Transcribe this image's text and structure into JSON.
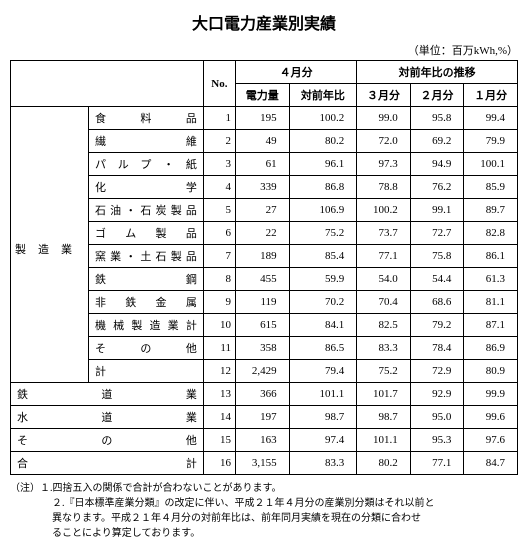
{
  "title": "大口電力産業別実績",
  "unit": "（単位：百万kWh,%）",
  "headers": {
    "no": "No.",
    "month_group": "４月分",
    "power": "電力量",
    "yoy": "対前年比",
    "trend_group": "対前年比の推移",
    "m3": "３月分",
    "m2": "２月分",
    "m1": "１月分"
  },
  "vertical_label": "製造業",
  "rows": [
    {
      "cat": "食　料　品",
      "no": "1",
      "power": "195",
      "yoy": "100.2",
      "m3": "99.0",
      "m2": "95.8",
      "m1": "99.4",
      "indent": true
    },
    {
      "cat": "繊　　　維",
      "no": "2",
      "power": "49",
      "yoy": "80.2",
      "m3": "72.0",
      "m2": "69.2",
      "m1": "79.9",
      "indent": true
    },
    {
      "cat": "パルプ・紙",
      "no": "3",
      "power": "61",
      "yoy": "96.1",
      "m3": "97.3",
      "m2": "94.9",
      "m1": "100.1",
      "indent": true
    },
    {
      "cat": "化　　　学",
      "no": "4",
      "power": "339",
      "yoy": "86.8",
      "m3": "78.8",
      "m2": "76.2",
      "m1": "85.9",
      "indent": true
    },
    {
      "cat": "石油・石炭製品",
      "no": "5",
      "power": "27",
      "yoy": "106.9",
      "m3": "100.2",
      "m2": "99.1",
      "m1": "89.7",
      "indent": true
    },
    {
      "cat": "ゴム製品",
      "no": "6",
      "power": "22",
      "yoy": "75.2",
      "m3": "73.7",
      "m2": "72.7",
      "m1": "82.8",
      "indent": true
    },
    {
      "cat": "窯業・土石製品",
      "no": "7",
      "power": "189",
      "yoy": "85.4",
      "m3": "77.1",
      "m2": "75.8",
      "m1": "86.1",
      "indent": true
    },
    {
      "cat": "鉄　　　鋼",
      "no": "8",
      "power": "455",
      "yoy": "59.9",
      "m3": "54.0",
      "m2": "54.4",
      "m1": "61.3",
      "indent": true
    },
    {
      "cat": "非鉄金属",
      "no": "9",
      "power": "119",
      "yoy": "70.2",
      "m3": "70.4",
      "m2": "68.6",
      "m1": "81.1",
      "indent": true
    },
    {
      "cat": "機械製造業計",
      "no": "10",
      "power": "615",
      "yoy": "84.1",
      "m3": "82.5",
      "m2": "79.2",
      "m1": "87.1",
      "indent": true
    },
    {
      "cat": "そ　の　他",
      "no": "11",
      "power": "358",
      "yoy": "86.5",
      "m3": "83.3",
      "m2": "78.4",
      "m1": "86.9",
      "indent": true
    },
    {
      "cat": "計",
      "no": "12",
      "power": "2,429",
      "yoy": "79.4",
      "m3": "75.2",
      "m2": "72.9",
      "m1": "80.9",
      "indent": true
    },
    {
      "cat": "鉄　道　業",
      "no": "13",
      "power": "366",
      "yoy": "101.1",
      "m3": "101.7",
      "m2": "92.9",
      "m1": "99.9",
      "indent": false
    },
    {
      "cat": "水　道　業",
      "no": "14",
      "power": "197",
      "yoy": "98.7",
      "m3": "98.7",
      "m2": "95.0",
      "m1": "99.6",
      "indent": false
    },
    {
      "cat": "そ　の　他",
      "no": "15",
      "power": "163",
      "yoy": "97.4",
      "m3": "101.1",
      "m2": "95.3",
      "m1": "97.6",
      "indent": false
    },
    {
      "cat": "合　　　計",
      "no": "16",
      "power": "3,155",
      "yoy": "83.3",
      "m3": "80.2",
      "m2": "77.1",
      "m1": "84.7",
      "indent": false
    }
  ],
  "notes": {
    "prefix": "（注）",
    "line1": "１.四捨五入の関係で合計が合わないことがあります。",
    "line2a": "２.『日本標準産業分類』の改定に伴い、平成２１年４月分の産業別分類はそれ以前と",
    "line2b": "異なります。平成２１年４月分の対前年比は、前年同月実績を現在の分類に合わせ",
    "line2c": "ることにより算定しております。"
  },
  "style": {
    "background_color": "#ffffff",
    "border_color": "#000000",
    "title_fontsize": 16,
    "body_fontsize": 11,
    "notes_fontsize": 10
  }
}
